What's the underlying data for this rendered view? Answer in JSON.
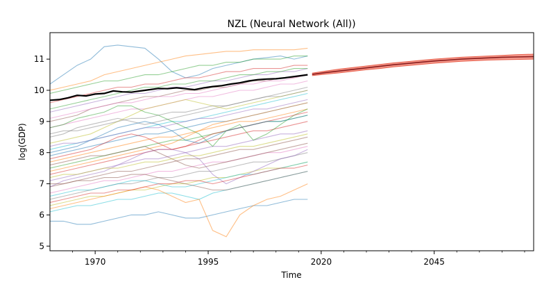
{
  "chart_data": {
    "type": "line",
    "title": "NZL (Neural Network (All))",
    "xlabel": "Time",
    "ylabel": "log(GDP)",
    "xlim": [
      1960,
      2067
    ],
    "ylim": [
      4.85,
      11.85
    ],
    "x_ticks": [
      "1970",
      "1995",
      "2020",
      "2045"
    ],
    "x_tick_values": [
      1970,
      1995,
      2020,
      2045
    ],
    "y_ticks": [
      "5",
      "6",
      "7",
      "8",
      "9",
      "10",
      "11"
    ],
    "y_tick_values": [
      5,
      6,
      7,
      8,
      9,
      10,
      11
    ],
    "grid": false,
    "legend": "none",
    "target_series": {
      "name": "NZL",
      "color": "#000000",
      "x": [
        1960,
        1962,
        1964,
        1966,
        1968,
        1970,
        1972,
        1974,
        1976,
        1978,
        1980,
        1982,
        1984,
        1986,
        1988,
        1990,
        1992,
        1994,
        1996,
        1998,
        2000,
        2002,
        2004,
        2006,
        2008,
        2010,
        2012,
        2014,
        2016,
        2017
      ],
      "y": [
        9.68,
        9.7,
        9.76,
        9.84,
        9.82,
        9.88,
        9.9,
        9.98,
        9.95,
        9.94,
        9.98,
        10.02,
        10.06,
        10.05,
        10.08,
        10.05,
        10.02,
        10.08,
        10.12,
        10.15,
        10.2,
        10.24,
        10.3,
        10.34,
        10.36,
        10.37,
        10.4,
        10.44,
        10.48,
        10.5
      ]
    },
    "forecast": {
      "line_color": "#8b1a1a",
      "band_color": "#f08070",
      "x": [
        2018,
        2021,
        2024,
        2027,
        2030,
        2033,
        2036,
        2039,
        2042,
        2045,
        2048,
        2051,
        2054,
        2057,
        2060,
        2063,
        2067
      ],
      "y": [
        10.51,
        10.57,
        10.62,
        10.67,
        10.72,
        10.77,
        10.82,
        10.86,
        10.9,
        10.94,
        10.97,
        11.0,
        11.02,
        11.04,
        11.06,
        11.07,
        11.08
      ],
      "lower": [
        10.47,
        10.52,
        10.56,
        10.61,
        10.66,
        10.7,
        10.75,
        10.79,
        10.83,
        10.87,
        10.9,
        10.93,
        10.95,
        10.97,
        10.98,
        10.99,
        11.0
      ],
      "upper": [
        10.55,
        10.62,
        10.68,
        10.73,
        10.78,
        10.83,
        10.88,
        10.92,
        10.96,
        11.0,
        11.03,
        11.06,
        11.08,
        11.1,
        11.12,
        11.14,
        11.16
      ]
    },
    "background_series": {
      "x_start": 1960,
      "x_end": 2017,
      "step": 3,
      "opacity": 0.5,
      "colors": [
        "#1f77b4",
        "#ff7f0e",
        "#2ca02c",
        "#d62728",
        "#9467bd",
        "#8c564b",
        "#e377c2",
        "#7f7f7f",
        "#bcbd22",
        "#17becf"
      ],
      "series": [
        [
          10.2,
          10.5,
          10.8,
          11.0,
          11.4,
          11.45,
          11.4,
          11.35,
          11.0,
          10.6,
          10.4,
          10.5,
          10.7,
          10.8,
          10.9,
          11.0,
          11.05,
          11.1,
          11.0,
          11.1
        ],
        [
          10.0,
          10.1,
          10.2,
          10.3,
          10.5,
          10.6,
          10.7,
          10.8,
          10.9,
          11.0,
          11.1,
          11.15,
          11.2,
          11.25,
          11.25,
          11.3,
          11.3,
          11.3,
          11.3,
          11.35
        ],
        [
          9.9,
          10.0,
          10.1,
          10.2,
          10.3,
          10.3,
          10.4,
          10.5,
          10.5,
          10.6,
          10.7,
          10.8,
          10.8,
          10.9,
          10.9,
          11.0,
          11.0,
          11.0,
          11.1,
          11.1
        ],
        [
          9.6,
          9.7,
          9.8,
          9.9,
          10.0,
          10.1,
          10.1,
          10.2,
          10.2,
          10.3,
          10.4,
          10.4,
          10.5,
          10.6,
          10.6,
          10.7,
          10.7,
          10.7,
          10.8,
          10.8
        ],
        [
          9.3,
          9.4,
          9.5,
          9.6,
          9.7,
          9.8,
          9.9,
          9.9,
          10.0,
          10.1,
          10.1,
          10.2,
          10.3,
          10.3,
          10.4,
          10.5,
          10.5,
          10.6,
          10.6,
          10.7
        ],
        [
          9.0,
          9.1,
          9.2,
          9.4,
          9.5,
          9.6,
          9.7,
          9.8,
          9.8,
          9.9,
          10.0,
          10.0,
          10.1,
          10.1,
          10.2,
          10.3,
          10.3,
          10.4,
          10.4,
          10.5
        ],
        [
          8.8,
          8.9,
          9.0,
          9.1,
          9.2,
          9.3,
          9.4,
          9.4,
          9.5,
          9.6,
          9.7,
          9.8,
          9.8,
          9.9,
          10.0,
          10.0,
          10.1,
          10.2,
          10.2,
          10.3
        ],
        [
          8.5,
          8.6,
          8.8,
          8.9,
          9.0,
          9.1,
          9.0,
          8.9,
          9.0,
          9.1,
          9.2,
          9.3,
          9.4,
          9.5,
          9.6,
          9.7,
          9.8,
          9.9,
          10.0,
          10.1
        ],
        [
          8.3,
          8.4,
          8.5,
          8.6,
          8.8,
          9.0,
          9.2,
          9.4,
          9.5,
          9.6,
          9.7,
          9.6,
          9.5,
          9.4,
          9.5,
          9.6,
          9.7,
          9.8,
          9.9,
          10.0
        ],
        [
          8.1,
          8.2,
          8.3,
          8.4,
          8.5,
          8.6,
          8.7,
          8.8,
          8.9,
          9.0,
          9.0,
          9.1,
          9.2,
          9.3,
          9.4,
          9.5,
          9.6,
          9.7,
          9.8,
          9.9
        ],
        [
          7.9,
          8.0,
          8.1,
          8.2,
          8.3,
          8.4,
          8.5,
          8.6,
          8.6,
          8.7,
          8.8,
          8.9,
          9.0,
          9.0,
          9.1,
          9.2,
          9.3,
          9.4,
          9.5,
          9.6
        ],
        [
          7.7,
          7.8,
          7.9,
          8.0,
          8.1,
          8.2,
          8.3,
          8.4,
          8.5,
          8.5,
          8.6,
          8.7,
          8.8,
          8.9,
          9.0,
          9.0,
          9.1,
          9.2,
          9.3,
          9.4
        ],
        [
          7.5,
          7.6,
          7.7,
          7.8,
          7.9,
          8.0,
          8.1,
          8.2,
          8.3,
          8.4,
          8.4,
          8.5,
          8.6,
          8.7,
          8.8,
          8.9,
          9.0,
          9.0,
          9.1,
          9.2
        ],
        [
          7.3,
          7.4,
          7.5,
          7.6,
          7.7,
          7.8,
          7.9,
          8.0,
          8.1,
          8.1,
          8.2,
          8.3,
          8.4,
          8.5,
          8.6,
          8.7,
          8.7,
          8.8,
          8.9,
          9.0
        ],
        [
          7.1,
          7.2,
          7.3,
          7.4,
          7.5,
          7.6,
          7.7,
          7.8,
          7.8,
          7.9,
          8.0,
          8.1,
          8.2,
          8.2,
          8.3,
          8.4,
          8.5,
          8.6,
          8.6,
          8.7
        ],
        [
          6.9,
          7.0,
          7.1,
          7.2,
          7.3,
          7.4,
          7.4,
          7.5,
          7.6,
          7.7,
          7.8,
          7.8,
          7.9,
          8.0,
          8.1,
          8.1,
          8.2,
          8.3,
          8.4,
          8.5
        ],
        [
          6.7,
          6.8,
          6.9,
          7.0,
          7.1,
          7.1,
          7.2,
          7.3,
          7.4,
          7.4,
          7.5,
          7.6,
          7.7,
          7.7,
          7.8,
          7.9,
          8.0,
          8.0,
          8.1,
          8.2
        ],
        [
          6.5,
          6.6,
          6.7,
          6.8,
          6.9,
          7.0,
          7.0,
          7.1,
          7.2,
          7.2,
          7.3,
          7.4,
          7.4,
          7.5,
          7.6,
          7.7,
          7.7,
          7.8,
          7.9,
          8.0
        ],
        [
          6.3,
          6.4,
          6.5,
          6.6,
          6.6,
          6.7,
          6.8,
          6.8,
          6.9,
          7.0,
          7.0,
          7.1,
          7.2,
          7.2,
          7.3,
          7.4,
          7.5,
          7.5,
          7.6,
          7.7
        ],
        [
          6.1,
          6.2,
          6.3,
          6.3,
          6.4,
          6.5,
          6.5,
          6.6,
          6.7,
          6.7,
          6.6,
          6.5,
          6.7,
          6.8,
          6.9,
          7.0,
          7.1,
          7.2,
          7.3,
          7.4
        ],
        [
          5.8,
          5.8,
          5.7,
          5.7,
          5.8,
          5.9,
          6.0,
          6.0,
          6.1,
          6.0,
          5.9,
          5.9,
          6.0,
          6.1,
          6.2,
          6.3,
          6.3,
          6.4,
          6.5,
          6.5
        ],
        [
          6.2,
          6.3,
          6.4,
          6.5,
          6.6,
          6.7,
          6.8,
          6.9,
          6.8,
          6.6,
          6.4,
          6.5,
          5.5,
          5.3,
          6.0,
          6.3,
          6.5,
          6.6,
          6.8,
          7.0
        ],
        [
          8.8,
          8.9,
          9.1,
          9.2,
          9.3,
          9.5,
          9.5,
          9.3,
          9.2,
          9.0,
          8.8,
          8.6,
          8.2,
          8.7,
          8.9,
          8.4,
          8.6,
          8.9,
          9.2,
          9.4
        ],
        [
          7.8,
          7.9,
          8.0,
          8.1,
          8.3,
          8.5,
          8.6,
          8.5,
          8.3,
          8.1,
          8.2,
          8.4,
          8.6,
          8.7,
          8.8,
          8.9,
          9.0,
          9.1,
          9.2,
          9.3
        ],
        [
          6.9,
          7.1,
          7.2,
          7.3,
          7.4,
          7.6,
          7.8,
          8.0,
          8.1,
          8.1,
          8.0,
          7.8,
          7.3,
          7.0,
          7.2,
          7.4,
          7.6,
          7.8,
          7.9,
          8.1
        ],
        [
          7.6,
          7.7,
          7.8,
          7.9,
          7.9,
          8.0,
          8.1,
          8.2,
          8.0,
          7.8,
          7.6,
          7.5,
          7.6,
          7.7,
          7.8,
          7.9,
          8.0,
          8.1,
          8.2,
          8.3
        ],
        [
          9.1,
          9.2,
          9.3,
          9.4,
          9.5,
          9.6,
          9.6,
          9.7,
          9.8,
          9.8,
          9.9,
          9.9,
          10.0,
          10.1,
          10.2,
          10.2,
          10.3,
          10.3,
          10.4,
          10.5
        ],
        [
          8.6,
          8.7,
          8.7,
          8.8,
          8.9,
          9.0,
          9.1,
          9.1,
          9.2,
          9.3,
          9.3,
          9.4,
          9.5,
          9.5,
          9.6,
          9.7,
          9.8,
          9.8,
          9.9,
          10.0
        ],
        [
          7.2,
          7.3,
          7.3,
          7.4,
          7.5,
          7.5,
          7.6,
          7.7,
          7.7,
          7.8,
          7.9,
          7.9,
          8.0,
          8.1,
          8.2,
          8.2,
          8.3,
          8.4,
          8.5,
          8.6
        ],
        [
          6.6,
          6.7,
          6.8,
          6.8,
          6.9,
          7.0,
          7.1,
          7.1,
          7.0,
          6.9,
          6.9,
          7.0,
          7.1,
          7.2,
          7.3,
          7.3,
          7.4,
          7.5,
          7.6,
          7.7
        ],
        [
          8.0,
          8.1,
          8.2,
          8.4,
          8.6,
          8.8,
          8.9,
          9.0,
          8.9,
          8.7,
          8.4,
          8.3,
          8.5,
          8.7,
          8.8,
          8.9,
          9.0,
          9.0,
          9.1,
          9.2
        ],
        [
          7.4,
          7.5,
          7.6,
          7.7,
          7.8,
          7.9,
          8.0,
          8.1,
          8.2,
          8.3,
          8.5,
          8.7,
          8.9,
          9.0,
          9.1,
          9.2,
          9.3,
          9.4,
          9.5,
          9.6
        ],
        [
          9.4,
          9.5,
          9.6,
          9.7,
          9.8,
          9.9,
          10.0,
          10.1,
          10.1,
          10.2,
          10.2,
          10.3,
          10.3,
          10.4,
          10.5,
          10.5,
          10.6,
          10.6,
          10.7,
          10.7
        ],
        [
          6.4,
          6.5,
          6.6,
          6.7,
          6.7,
          6.8,
          6.8,
          6.9,
          7.0,
          7.0,
          7.1,
          7.1,
          7.0,
          7.1,
          7.2,
          7.3,
          7.4,
          7.5,
          7.5,
          7.6
        ],
        [
          8.2,
          8.3,
          8.3,
          8.4,
          8.5,
          8.6,
          8.7,
          8.8,
          8.8,
          8.9,
          9.0,
          9.1,
          9.1,
          9.2,
          9.3,
          9.4,
          9.4,
          9.5,
          9.6,
          9.7
        ],
        [
          7.0,
          7.0,
          7.1,
          7.1,
          7.2,
          7.2,
          7.3,
          7.3,
          7.2,
          7.1,
          7.0,
          6.9,
          6.8,
          6.8,
          6.9,
          7.0,
          7.1,
          7.2,
          7.3,
          7.4
        ]
      ]
    }
  }
}
